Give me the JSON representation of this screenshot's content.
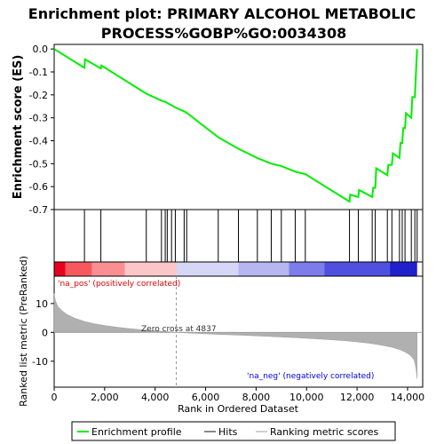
{
  "chart_data": [
    {
      "type": "line",
      "title": "Enrichment plot: PRIMARY ALCOHOL METABOLIC\nPROCESS%GOBP%GO:0034308",
      "ylabel": "Enrichment score (ES)",
      "xlim": [
        0,
        14600
      ],
      "ylim": [
        -0.7,
        0.02
      ],
      "yticks": [
        0.0,
        -0.1,
        -0.2,
        -0.3,
        -0.4,
        -0.5,
        -0.6,
        -0.7
      ],
      "ytick_labels": [
        "0.0",
        "-0.1",
        "-0.2",
        "-0.3",
        "-0.4",
        "-0.5",
        "-0.6",
        "-0.7"
      ],
      "series": [
        {
          "name": "Enrichment profile",
          "color": "#00ee00",
          "x": [
            0,
            1200,
            1220,
            1850,
            1870,
            3650,
            4250,
            4400,
            4480,
            4650,
            4800,
            5150,
            5250,
            6500,
            7300,
            8050,
            8600,
            9000,
            9550,
            9950,
            11700,
            11730,
            12050,
            12080,
            12600,
            12640,
            12720,
            12760,
            13200,
            13240,
            13380,
            13420,
            13680,
            13720,
            13790,
            13830,
            13900,
            13940,
            14150,
            14190,
            14290,
            14330,
            14380
          ],
          "y": [
            0.0,
            -0.082,
            -0.045,
            -0.085,
            -0.072,
            -0.195,
            -0.225,
            -0.23,
            -0.235,
            -0.245,
            -0.255,
            -0.272,
            -0.278,
            -0.385,
            -0.435,
            -0.475,
            -0.5,
            -0.51,
            -0.535,
            -0.545,
            -0.665,
            -0.635,
            -0.645,
            -0.615,
            -0.645,
            -0.605,
            -0.605,
            -0.52,
            -0.55,
            -0.505,
            -0.505,
            -0.455,
            -0.475,
            -0.41,
            -0.41,
            -0.345,
            -0.345,
            -0.28,
            -0.3,
            -0.21,
            -0.21,
            -0.115,
            0.0
          ]
        }
      ]
    },
    {
      "type": "heatmap",
      "name": "Hits",
      "hit_positions": [
        1200,
        1850,
        3650,
        4250,
        4400,
        4480,
        4650,
        4800,
        5150,
        5250,
        6500,
        7300,
        8050,
        8600,
        9000,
        9550,
        9950,
        11700,
        12050,
        12600,
        12720,
        13200,
        13380,
        13680,
        13790,
        13900,
        14150,
        14290,
        14380
      ],
      "ranking_color_bands": [
        {
          "from": 0,
          "to": 450,
          "color": "#e8001f"
        },
        {
          "from": 450,
          "to": 1500,
          "color": "#f7585d"
        },
        {
          "from": 1500,
          "to": 2800,
          "color": "#f98f93"
        },
        {
          "from": 2800,
          "to": 4837,
          "color": "#fcc6c9"
        },
        {
          "from": 4837,
          "to": 7300,
          "color": "#d6d6f6"
        },
        {
          "from": 7300,
          "to": 9300,
          "color": "#b6b6f0"
        },
        {
          "from": 9300,
          "to": 10700,
          "color": "#7c7ceb"
        },
        {
          "from": 10700,
          "to": 13300,
          "color": "#5050e0"
        },
        {
          "from": 13300,
          "to": 14380,
          "color": "#2020cc"
        }
      ]
    },
    {
      "type": "area",
      "name": "Ranking metric scores",
      "ylabel": "Ranked list metric (PreRanked)",
      "xlabel": "Rank in Ordered Dataset",
      "xlim": [
        0,
        14600
      ],
      "ylim": [
        -19,
        19.5
      ],
      "xticks": [
        0,
        2000,
        4000,
        6000,
        8000,
        10000,
        12000,
        14000
      ],
      "xtick_labels": [
        "0",
        "2,000",
        "4,000",
        "6,000",
        "8,000",
        "10,000",
        "12,000",
        "14,000"
      ],
      "yticks": [
        10,
        0,
        -10
      ],
      "ytick_labels": [
        "10",
        "0",
        "-10"
      ],
      "x": [
        0,
        50,
        150,
        300,
        500,
        800,
        1200,
        1600,
        2000,
        2500,
        3000,
        3500,
        4000,
        4500,
        4837,
        5500,
        6500,
        7500,
        8500,
        9500,
        10500,
        11500,
        12000,
        12500,
        13000,
        13400,
        13700,
        13900,
        14050,
        14150,
        14250,
        14300,
        14340,
        14380
      ],
      "y": [
        13.5,
        11.0,
        9.0,
        7.6,
        6.3,
        5.0,
        3.8,
        3.0,
        2.4,
        1.8,
        1.3,
        0.9,
        0.6,
        0.25,
        0.0,
        -0.3,
        -0.7,
        -1.0,
        -1.4,
        -1.8,
        -2.3,
        -2.9,
        -3.3,
        -3.8,
        -4.5,
        -5.2,
        -6.0,
        -6.8,
        -7.6,
        -8.3,
        -9.5,
        -11.0,
        -13.0,
        -16.0
      ],
      "zero_cross": 4837,
      "annotations": [
        {
          "text": "'na_pos' (positively correlated)",
          "color": "#dd0000"
        },
        {
          "text": "Zero cross at 4837",
          "color": "#333333"
        },
        {
          "text": "'na_neg' (negatively correlated)",
          "color": "#0000dd"
        }
      ]
    }
  ],
  "legend": {
    "items": [
      {
        "label": "Enrichment profile",
        "color": "#00ee00"
      },
      {
        "label": "Hits",
        "color": "#888888"
      },
      {
        "label": "Ranking metric scores",
        "color": "#d0d0d0"
      }
    ]
  }
}
